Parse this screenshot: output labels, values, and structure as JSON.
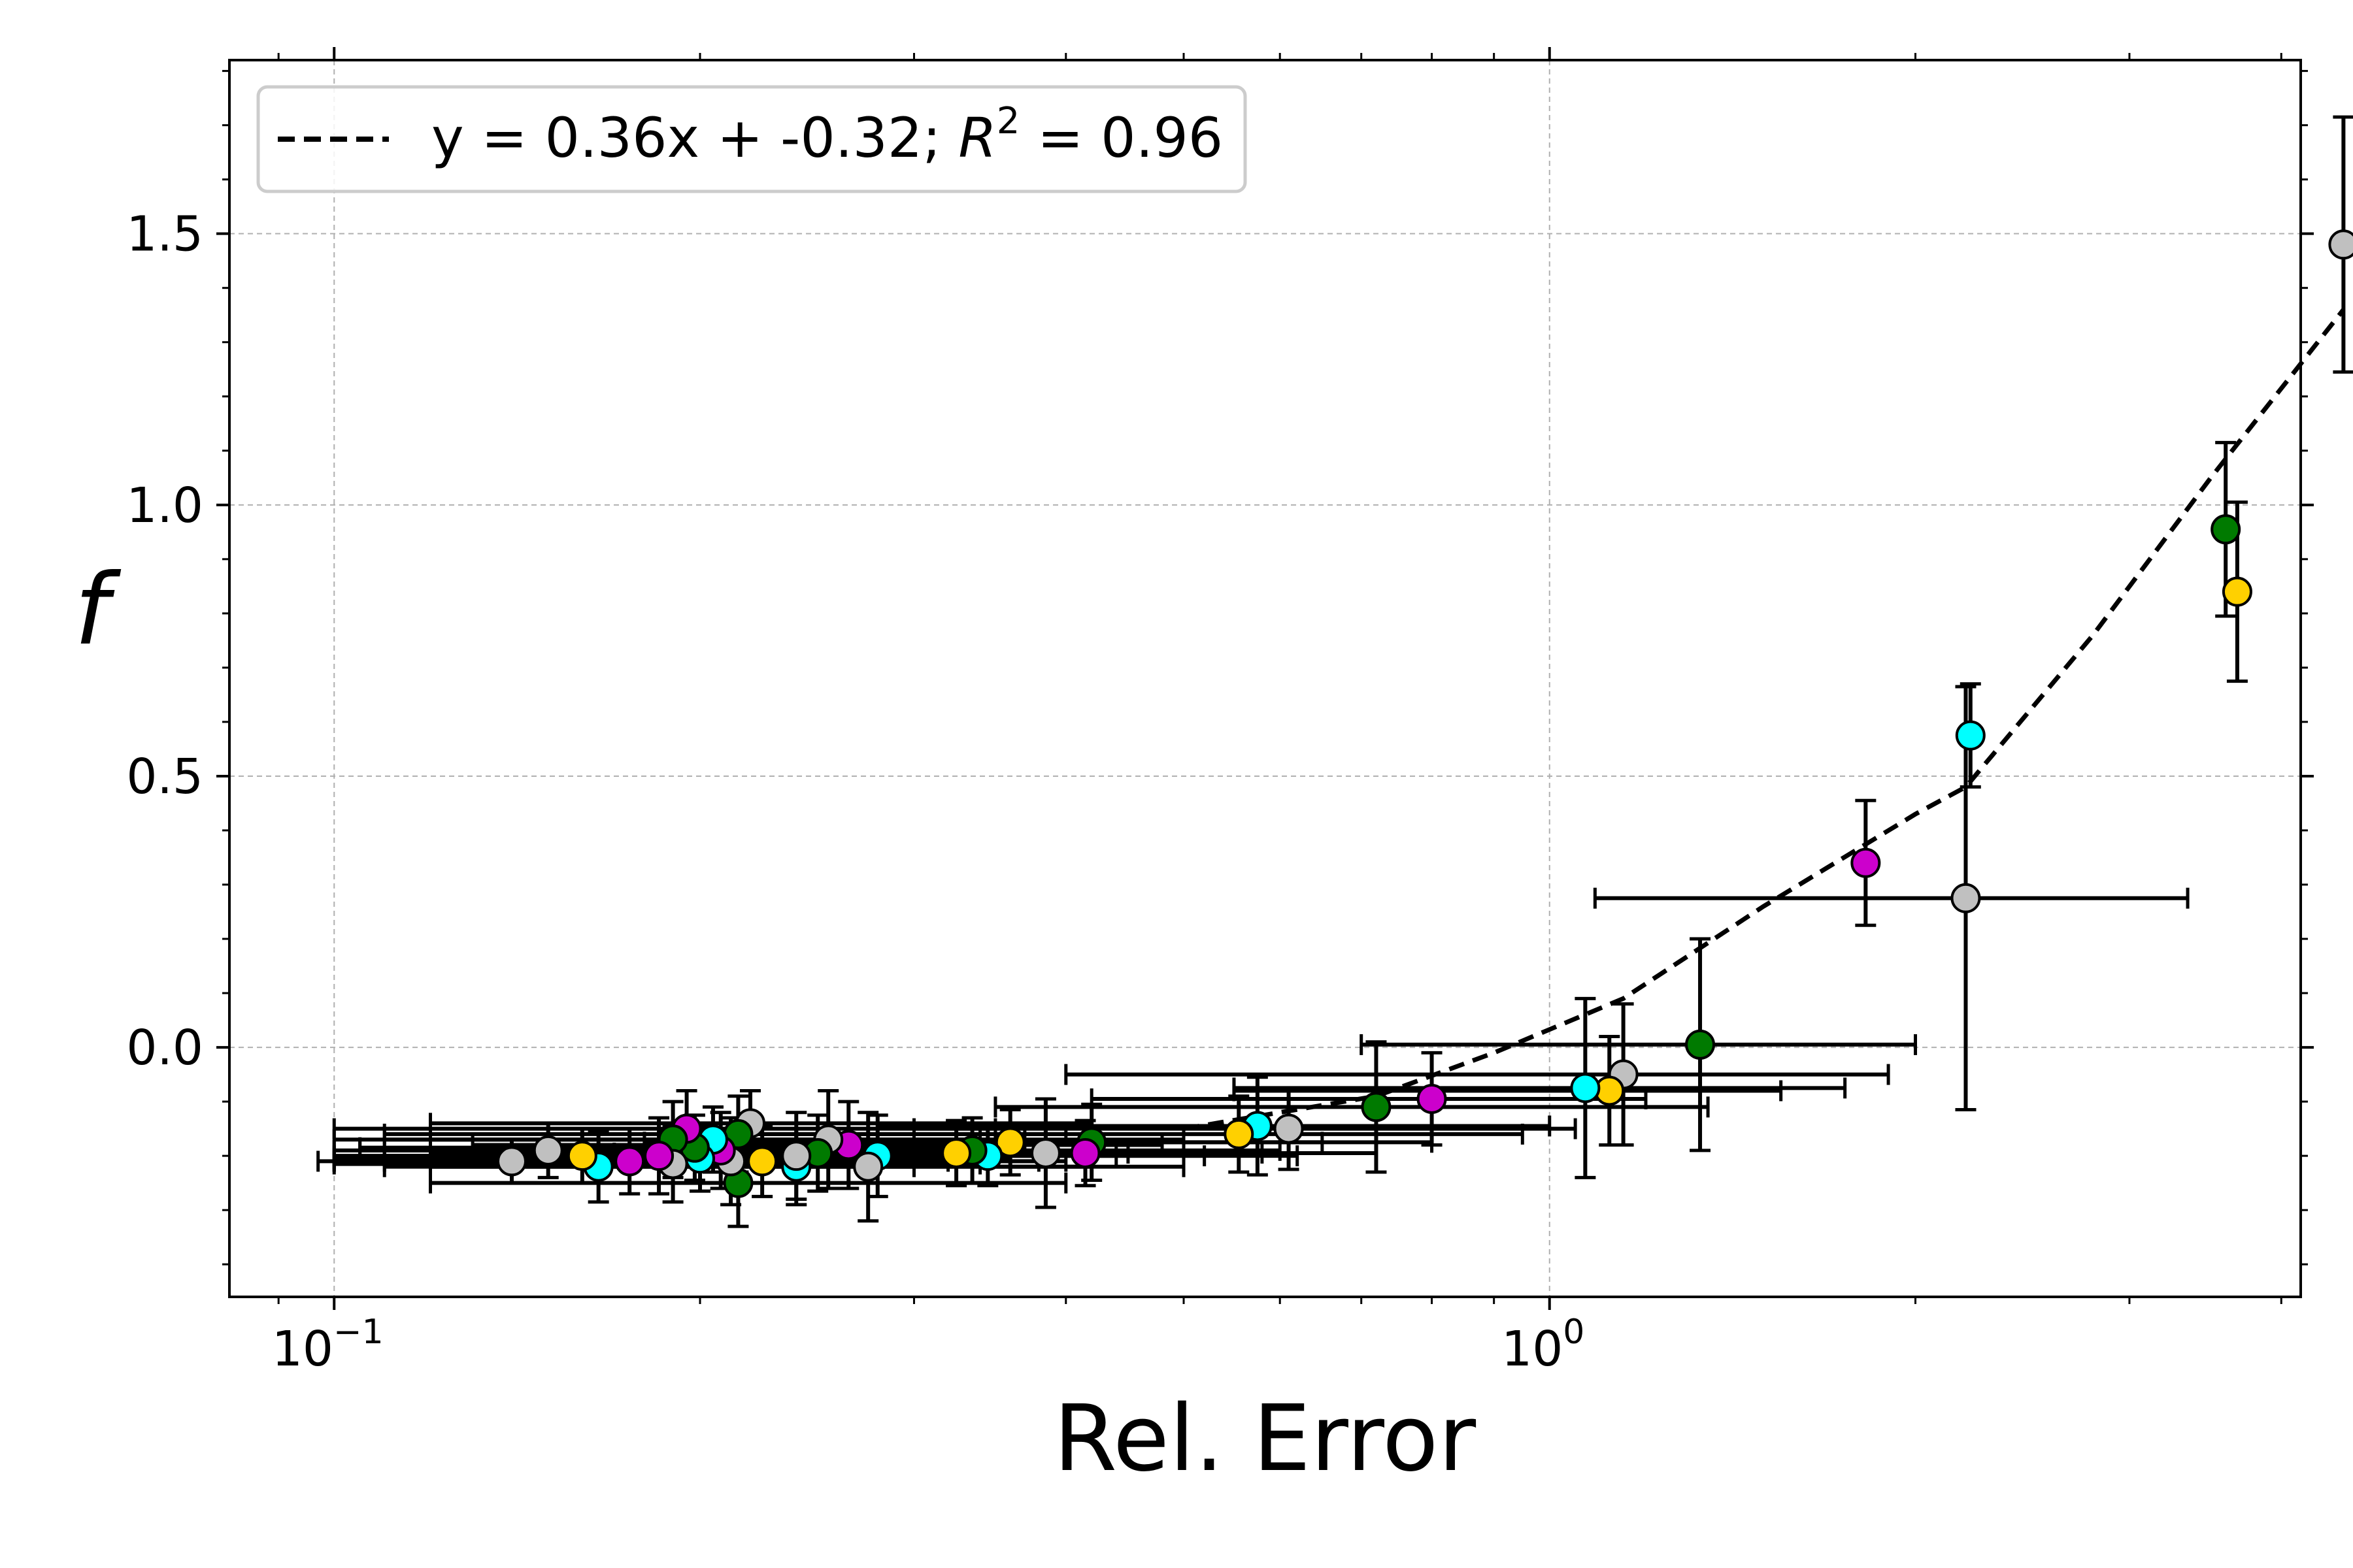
{
  "chart_data": {
    "type": "scatter",
    "title": "",
    "xlabel": "Rel. Error",
    "ylabel": "f",
    "x_scale": "log",
    "xlim": [
      0.082,
      4.15
    ],
    "ylim": [
      -0.46,
      1.82
    ],
    "x_ticks": [
      {
        "value": 0.1,
        "base": "10",
        "exp": "−1"
      },
      {
        "value": 1.0,
        "base": "10",
        "exp": "0"
      }
    ],
    "y_ticks": [
      {
        "value": 0.0,
        "label": "0.0"
      },
      {
        "value": 0.5,
        "label": "0.5"
      },
      {
        "value": 1.0,
        "label": "1.0"
      },
      {
        "value": 1.5,
        "label": "1.5"
      }
    ],
    "grid": true,
    "legend": {
      "position": "top-left",
      "entry": {
        "style": "dashed",
        "text_main": "y = 0.36x + -0.32; ",
        "r_symbol": "R",
        "r_exp": "2",
        "text_end": " = 0.96"
      }
    },
    "colors": {
      "magenta": "#cc00cc",
      "cyan": "#00ffff",
      "green": "#007a00",
      "gold": "#ffd000",
      "gray": "#c0c0c0"
    },
    "fit_line": {
      "x": [
        0.5,
        0.72,
        0.9,
        1.15,
        1.5,
        2.0,
        2.2,
        2.8,
        3.5,
        4.5
      ],
      "y": [
        -0.15,
        -0.09,
        -0.01,
        0.09,
        0.26,
        0.43,
        0.48,
        0.76,
        1.05,
        1.36
      ]
    },
    "points": [
      {
        "x": 4.5,
        "y": 1.48,
        "xerr": [
          0,
          0
        ],
        "yerr": 0.235,
        "color": "gray"
      },
      {
        "x": 3.6,
        "y": 0.955,
        "xerr": [
          0,
          0
        ],
        "yerr": 0.16,
        "color": "green"
      },
      {
        "x": 3.68,
        "y": 0.84,
        "xerr": [
          0,
          0
        ],
        "yerr": 0.165,
        "color": "gold"
      },
      {
        "x": 2.22,
        "y": 0.575,
        "xerr": [
          0,
          0
        ],
        "yerr": 0.095,
        "color": "cyan"
      },
      {
        "x": 1.82,
        "y": 0.34,
        "xerr": [
          0,
          0
        ],
        "yerr": 0.115,
        "color": "magenta"
      },
      {
        "x": 2.2,
        "y": 0.275,
        "xerr": [
          1.09,
          3.35
        ],
        "yerr": 0.39,
        "color": "gray"
      },
      {
        "x": 1.33,
        "y": 0.005,
        "xerr": [
          0.7,
          2.0
        ],
        "yerr": 0.195,
        "color": "green"
      },
      {
        "x": 1.15,
        "y": -0.05,
        "xerr": [
          0.4,
          1.9
        ],
        "yerr": 0.13,
        "color": "gray"
      },
      {
        "x": 1.12,
        "y": -0.08,
        "xerr": [
          0.55,
          1.55
        ],
        "yerr": 0.1,
        "color": "gold"
      },
      {
        "x": 1.07,
        "y": -0.075,
        "xerr": [
          0.55,
          1.75
        ],
        "yerr": 0.165,
        "color": "cyan"
      },
      {
        "x": 0.8,
        "y": -0.095,
        "xerr": [
          0.42,
          1.2
        ],
        "yerr": 0.085,
        "color": "magenta"
      },
      {
        "x": 0.72,
        "y": -0.11,
        "xerr": [
          0.35,
          1.35
        ],
        "yerr": 0.12,
        "color": "green"
      },
      {
        "x": 0.61,
        "y": -0.15,
        "xerr": [
          0.3,
          1.05
        ],
        "yerr": 0.075,
        "color": "gray"
      },
      {
        "x": 0.575,
        "y": -0.145,
        "xerr": [
          0.28,
          1.0
        ],
        "yerr": 0.09,
        "color": "cyan"
      },
      {
        "x": 0.555,
        "y": -0.16,
        "xerr": [
          0.22,
          0.95
        ],
        "yerr": 0.07,
        "color": "gold"
      },
      {
        "x": 0.42,
        "y": -0.175,
        "xerr": [
          0.18,
          0.8
        ],
        "yerr": 0.07,
        "color": "green"
      },
      {
        "x": 0.415,
        "y": -0.195,
        "xerr": [
          0.2,
          0.72
        ],
        "yerr": 0.06,
        "color": "magenta"
      },
      {
        "x": 0.385,
        "y": -0.195,
        "xerr": [
          0.17,
          0.72
        ],
        "yerr": 0.1,
        "color": "gray"
      },
      {
        "x": 0.36,
        "y": -0.175,
        "xerr": [
          0.18,
          0.65
        ],
        "yerr": 0.06,
        "color": "gold"
      },
      {
        "x": 0.345,
        "y": -0.2,
        "xerr": [
          0.15,
          0.62
        ],
        "yerr": 0.055,
        "color": "cyan"
      },
      {
        "x": 0.335,
        "y": -0.19,
        "xerr": [
          0.16,
          0.6
        ],
        "yerr": 0.06,
        "color": "green"
      },
      {
        "x": 0.325,
        "y": -0.195,
        "xerr": [
          0.14,
          0.58
        ],
        "yerr": 0.06,
        "color": "gold"
      },
      {
        "x": 0.28,
        "y": -0.2,
        "xerr": [
          0.14,
          0.52
        ],
        "yerr": 0.075,
        "color": "cyan"
      },
      {
        "x": 0.275,
        "y": -0.22,
        "xerr": [
          0.12,
          0.5
        ],
        "yerr": 0.1,
        "color": "gray"
      },
      {
        "x": 0.265,
        "y": -0.18,
        "xerr": [
          0.13,
          0.48
        ],
        "yerr": 0.08,
        "color": "magenta"
      },
      {
        "x": 0.255,
        "y": -0.17,
        "xerr": [
          0.12,
          0.5
        ],
        "yerr": 0.09,
        "color": "gray"
      },
      {
        "x": 0.25,
        "y": -0.195,
        "xerr": [
          0.12,
          0.45
        ],
        "yerr": 0.07,
        "color": "green"
      },
      {
        "x": 0.24,
        "y": -0.22,
        "xerr": [
          0.12,
          0.42
        ],
        "yerr": 0.07,
        "color": "cyan"
      },
      {
        "x": 0.24,
        "y": -0.2,
        "xerr": [
          0.11,
          0.44
        ],
        "yerr": 0.08,
        "color": "gray"
      },
      {
        "x": 0.225,
        "y": -0.21,
        "xerr": [
          0.11,
          0.4
        ],
        "yerr": 0.065,
        "color": "gold"
      },
      {
        "x": 0.22,
        "y": -0.14,
        "xerr": [
          0.12,
          0.42
        ],
        "yerr": 0.06,
        "color": "gray"
      },
      {
        "x": 0.215,
        "y": -0.16,
        "xerr": [
          0.11,
          0.4
        ],
        "yerr": 0.07,
        "color": "green"
      },
      {
        "x": 0.215,
        "y": -0.25,
        "xerr": [
          0.12,
          0.4
        ],
        "yerr": 0.08,
        "color": "green"
      },
      {
        "x": 0.212,
        "y": -0.21,
        "xerr": [
          0.1,
          0.38
        ],
        "yerr": 0.08,
        "color": "gray"
      },
      {
        "x": 0.208,
        "y": -0.19,
        "xerr": [
          0.1,
          0.38
        ],
        "yerr": 0.07,
        "color": "magenta"
      },
      {
        "x": 0.205,
        "y": -0.17,
        "xerr": [
          0.11,
          0.37
        ],
        "yerr": 0.06,
        "color": "cyan"
      },
      {
        "x": 0.2,
        "y": -0.205,
        "xerr": [
          0.1,
          0.36
        ],
        "yerr": 0.06,
        "color": "cyan"
      },
      {
        "x": 0.198,
        "y": -0.185,
        "xerr": [
          0.105,
          0.36
        ],
        "yerr": 0.06,
        "color": "green"
      },
      {
        "x": 0.195,
        "y": -0.15,
        "xerr": [
          0.1,
          0.35
        ],
        "yerr": 0.07,
        "color": "magenta"
      },
      {
        "x": 0.19,
        "y": -0.17,
        "xerr": [
          0.1,
          0.34
        ],
        "yerr": 0.07,
        "color": "green"
      },
      {
        "x": 0.19,
        "y": -0.215,
        "xerr": [
          0.1,
          0.34
        ],
        "yerr": 0.07,
        "color": "gray"
      },
      {
        "x": 0.185,
        "y": -0.2,
        "xerr": [
          0.1,
          0.33
        ],
        "yerr": 0.07,
        "color": "magenta"
      },
      {
        "x": 0.175,
        "y": -0.21,
        "xerr": [
          0.1,
          0.32
        ],
        "yerr": 0.06,
        "color": "magenta"
      },
      {
        "x": 0.165,
        "y": -0.22,
        "xerr": [
          0.11,
          0.3
        ],
        "yerr": 0.065,
        "color": "cyan"
      },
      {
        "x": 0.16,
        "y": -0.2,
        "xerr": [
          0.11,
          0.28
        ],
        "yerr": 0.05,
        "color": "gold"
      },
      {
        "x": 0.15,
        "y": -0.19,
        "xerr": [
          0.105,
          0.26
        ],
        "yerr": 0.05,
        "color": "gray"
      },
      {
        "x": 0.14,
        "y": -0.21,
        "xerr": [
          0.097,
          0.24
        ],
        "yerr": 0.04,
        "color": "gray"
      }
    ]
  }
}
